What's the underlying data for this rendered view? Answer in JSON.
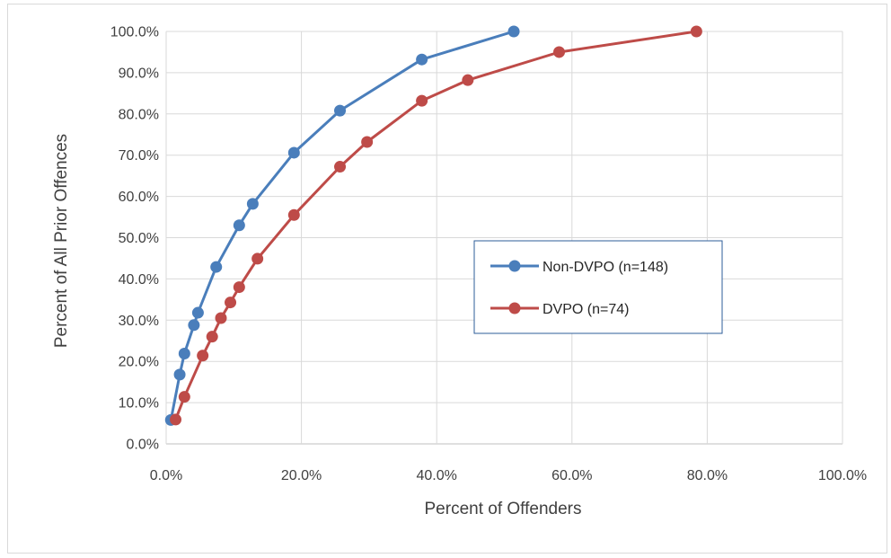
{
  "chart_data": {
    "type": "line",
    "title": "",
    "xlabel": "Percent of Offenders",
    "ylabel": "Percent of All Prior Offences",
    "xlim": [
      0,
      100
    ],
    "ylim": [
      0,
      100
    ],
    "x_ticks": [
      "0.0%",
      "20.0%",
      "40.0%",
      "60.0%",
      "80.0%",
      "100.0%"
    ],
    "y_ticks": [
      "0.0%",
      "10.0%",
      "20.0%",
      "30.0%",
      "40.0%",
      "50.0%",
      "60.0%",
      "70.0%",
      "80.0%",
      "90.0%",
      "100.0%"
    ],
    "grid": true,
    "legend_position": "center-right",
    "series": [
      {
        "name": "Non-DVPO (n=148)",
        "color": "#4a7ebb",
        "x": [
          0.7,
          2.0,
          2.7,
          4.1,
          4.7,
          7.4,
          10.8,
          12.8,
          18.9,
          25.7,
          37.8,
          51.4
        ],
        "y": [
          5.8,
          16.8,
          21.9,
          28.8,
          31.8,
          42.9,
          53.0,
          58.2,
          70.6,
          80.8,
          93.2,
          100.0
        ]
      },
      {
        "name": "DVPO (n=74)",
        "color": "#be4b48",
        "x": [
          1.4,
          2.7,
          5.4,
          6.8,
          8.1,
          9.5,
          10.8,
          13.5,
          18.9,
          25.7,
          29.7,
          37.8,
          44.6,
          58.1,
          78.4
        ],
        "y": [
          5.9,
          11.4,
          21.4,
          26.0,
          30.5,
          34.3,
          38.0,
          44.9,
          55.5,
          67.2,
          73.2,
          83.2,
          88.2,
          95.0,
          100.0
        ]
      }
    ]
  }
}
